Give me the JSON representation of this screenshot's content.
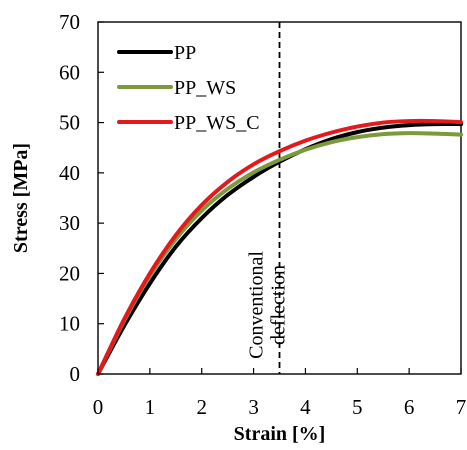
{
  "chart_data": {
    "type": "line",
    "xlabel": "Strain [%]",
    "ylabel": "Stress [MPa]",
    "xlim": [
      0,
      7
    ],
    "ylim": [
      0,
      70
    ],
    "xticks": [
      0,
      1,
      2,
      3,
      4,
      5,
      6,
      7
    ],
    "yticks": [
      0,
      10,
      20,
      30,
      40,
      50,
      60,
      70
    ],
    "xtick_labels": [
      "0",
      "1",
      "2",
      "3",
      "4",
      "5",
      "6",
      "7"
    ],
    "ytick_labels": [
      "0",
      "10",
      "20",
      "30",
      "40",
      "50",
      "60",
      "70"
    ],
    "grid": false,
    "legend_position": "top-left",
    "series": [
      {
        "name": "PP",
        "color": "#000000",
        "x": [
          0,
          0.5,
          1,
          1.5,
          2,
          2.5,
          3,
          3.5,
          4,
          4.5,
          5,
          5.5,
          6,
          6.5,
          7
        ],
        "y": [
          0,
          9.5,
          18,
          25.3,
          31,
          35.6,
          39.2,
          42.2,
          44.7,
          46.7,
          48.1,
          49,
          49.5,
          49.7,
          49.7
        ]
      },
      {
        "name": "PP_WS",
        "color": "#7a9a3c",
        "x": [
          0,
          0.5,
          1,
          1.5,
          2,
          2.5,
          3,
          3.5,
          4,
          4.5,
          5,
          5.5,
          6,
          6.5,
          7
        ],
        "y": [
          0,
          10.5,
          19.5,
          26.8,
          32.5,
          36.8,
          40.1,
          42.6,
          44.6,
          46.1,
          47.1,
          47.7,
          47.9,
          47.8,
          47.6
        ]
      },
      {
        "name": "PP_WS_C",
        "color": "#e31a1c",
        "x": [
          0,
          0.5,
          1,
          1.5,
          2,
          2.5,
          3,
          3.5,
          4,
          4.5,
          5,
          5.5,
          6,
          6.5,
          7
        ],
        "y": [
          0,
          10.8,
          20,
          27.6,
          33.6,
          38.2,
          41.7,
          44.3,
          46.4,
          48,
          49.2,
          50,
          50.3,
          50.3,
          50.1
        ]
      }
    ],
    "reference_lines": [
      {
        "type": "vertical",
        "x": 3.5,
        "style": "dashed",
        "color": "#000000",
        "label_lines": [
          "Conventional",
          "deflection"
        ]
      }
    ]
  }
}
